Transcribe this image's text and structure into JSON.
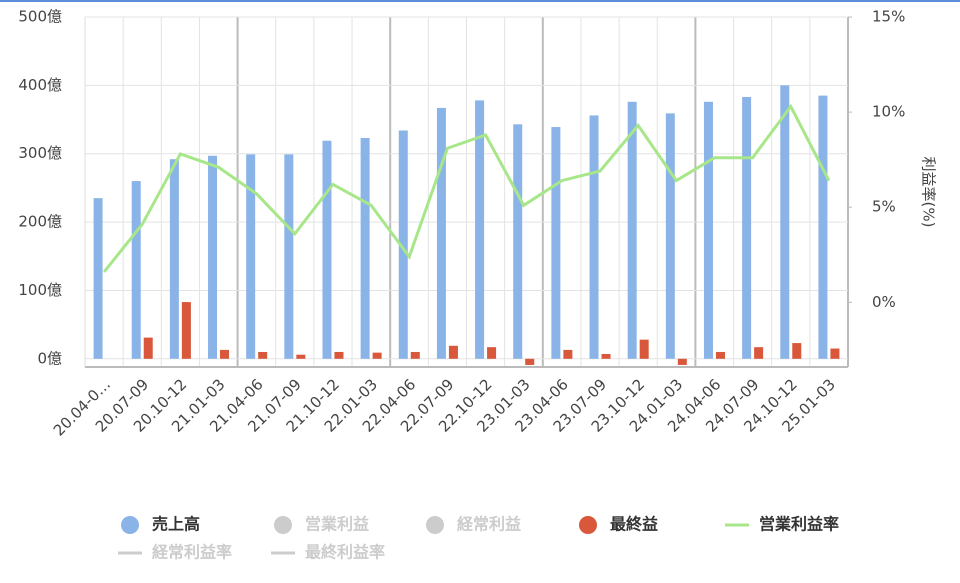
{
  "chart_data": {
    "type": "bar",
    "categories": [
      "20.04-0…",
      "20.07-09",
      "20.10-12",
      "21.01-03",
      "21.04-06",
      "21.07-09",
      "21.10-12",
      "22.01-03",
      "22.04-06",
      "22.07-09",
      "22.10-12",
      "23.01-03",
      "23.04-06",
      "23.07-09",
      "23.10-12",
      "24.01-03",
      "24.04-06",
      "24.07-09",
      "24.10-12",
      "25.01-03"
    ],
    "series": [
      {
        "name": "売上高",
        "type": "bar",
        "color": "#8ab4e8",
        "values": [
          235,
          260,
          292,
          297,
          299,
          299,
          319,
          323,
          334,
          367,
          378,
          343,
          339,
          356,
          376,
          359,
          376,
          383,
          400,
          385
        ]
      },
      {
        "name": "営業利益",
        "type": "bar",
        "color": "#cccccc",
        "visible": false
      },
      {
        "name": "経常利益",
        "type": "bar",
        "color": "#cccccc",
        "visible": false
      },
      {
        "name": "最終益",
        "type": "bar",
        "color": "#d9573b",
        "values": [
          null,
          31,
          83,
          13,
          10,
          6,
          10,
          9,
          10,
          19,
          17,
          -9,
          13,
          7,
          28,
          -9,
          10,
          17,
          23,
          15
        ]
      },
      {
        "name": "営業利益率",
        "type": "line",
        "axis": "y2",
        "color": "#a8e68a",
        "values": [
          1.6,
          4.1,
          7.8,
          7.1,
          5.7,
          3.6,
          6.2,
          5.1,
          2.4,
          8.1,
          8.8,
          5.1,
          6.4,
          6.9,
          9.3,
          6.4,
          7.6,
          7.6,
          10.3,
          6.4
        ]
      },
      {
        "name": "経常利益率",
        "type": "line",
        "axis": "y2",
        "color": "#cccccc",
        "visible": false
      },
      {
        "name": "最終利益率",
        "type": "line",
        "axis": "y2",
        "color": "#cccccc",
        "visible": false
      }
    ],
    "ylim": [
      -12,
      500
    ],
    "yticks": [
      {
        "value": 0,
        "label": "0億"
      },
      {
        "value": 100,
        "label": "100億"
      },
      {
        "value": 200,
        "label": "200億"
      },
      {
        "value": 300,
        "label": "300億"
      },
      {
        "value": 400,
        "label": "400億"
      },
      {
        "value": 500,
        "label": "500億"
      }
    ],
    "y2lim": [
      -3.4,
      15
    ],
    "y2ticks": [
      {
        "value": 0,
        "label": "0%"
      },
      {
        "value": 5,
        "label": "5%"
      },
      {
        "value": 10,
        "label": "10%"
      },
      {
        "value": 15,
        "label": "15%"
      }
    ],
    "y2label": "利益率(%)",
    "grid": true
  }
}
